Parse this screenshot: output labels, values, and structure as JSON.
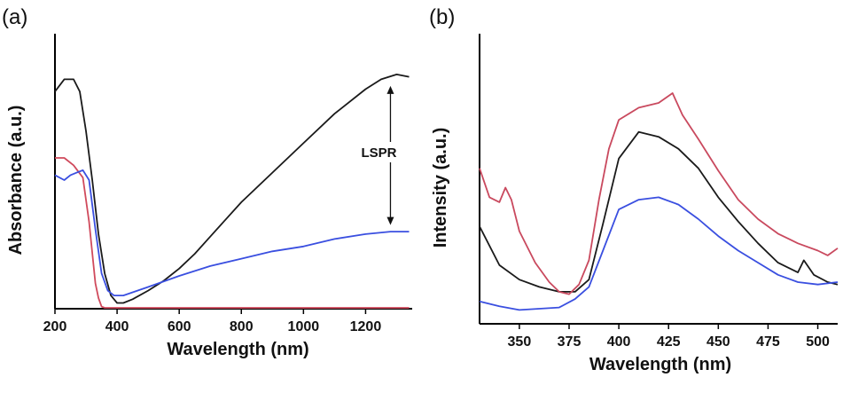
{
  "chart_data": [
    {
      "type": "line",
      "panel_label": "(a)",
      "xlabel": "Wavelength (nm)",
      "ylabel": "Absorbance (a.u.)",
      "xlim": [
        200,
        1350
      ],
      "ylim": [
        0,
        1.0
      ],
      "xticks": [
        200,
        400,
        600,
        800,
        1000,
        1200
      ],
      "y_tick_labels": false,
      "annotation": "LSPR",
      "series": [
        {
          "color": "#1a1a1a",
          "x": [
            200,
            230,
            260,
            280,
            300,
            320,
            340,
            360,
            380,
            400,
            420,
            450,
            500,
            550,
            600,
            650,
            700,
            750,
            800,
            900,
            1000,
            1100,
            1200,
            1250,
            1300,
            1340
          ],
          "y": [
            0.88,
            0.93,
            0.93,
            0.88,
            0.72,
            0.52,
            0.3,
            0.14,
            0.05,
            0.02,
            0.02,
            0.035,
            0.07,
            0.11,
            0.16,
            0.22,
            0.29,
            0.36,
            0.43,
            0.55,
            0.67,
            0.79,
            0.89,
            0.93,
            0.95,
            0.94
          ]
        },
        {
          "color": "#d04a5c",
          "x": [
            200,
            230,
            260,
            290,
            310,
            330,
            340,
            350,
            360,
            380,
            400,
            500,
            700,
            900,
            1100,
            1340
          ],
          "y": [
            0.61,
            0.61,
            0.58,
            0.53,
            0.35,
            0.1,
            0.04,
            0.005,
            0.0,
            0.0,
            0.0,
            0.0,
            0.0,
            0.0,
            0.0,
            0.0
          ]
        },
        {
          "color": "#3a4fe0",
          "x": [
            200,
            230,
            250,
            270,
            290,
            310,
            330,
            350,
            370,
            390,
            420,
            500,
            600,
            700,
            800,
            900,
            1000,
            1100,
            1200,
            1280,
            1340
          ],
          "y": [
            0.54,
            0.52,
            0.54,
            0.55,
            0.56,
            0.52,
            0.32,
            0.14,
            0.07,
            0.05,
            0.05,
            0.085,
            0.13,
            0.17,
            0.2,
            0.23,
            0.25,
            0.28,
            0.3,
            0.31,
            0.31
          ]
        }
      ]
    },
    {
      "type": "line",
      "panel_label": "(b)",
      "xlabel": "Wavelength (nm)",
      "ylabel": "Intensity (a.u.)",
      "xlim": [
        330,
        510
      ],
      "ylim": [
        0,
        1.0
      ],
      "xticks": [
        350,
        375,
        400,
        425,
        450,
        475,
        500
      ],
      "y_tick_labels": false,
      "series": [
        {
          "color": "#1a1a1a",
          "x": [
            330,
            340,
            350,
            360,
            370,
            378,
            385,
            392,
            400,
            410,
            420,
            430,
            440,
            450,
            460,
            470,
            480,
            490,
            493,
            498,
            505,
            510
          ],
          "y": [
            0.34,
            0.18,
            0.12,
            0.09,
            0.07,
            0.07,
            0.12,
            0.35,
            0.62,
            0.73,
            0.71,
            0.66,
            0.58,
            0.46,
            0.36,
            0.27,
            0.19,
            0.15,
            0.2,
            0.14,
            0.11,
            0.1
          ]
        },
        {
          "color": "#c9495e",
          "x": [
            330,
            335,
            340,
            343,
            346,
            350,
            358,
            365,
            370,
            375,
            380,
            385,
            390,
            395,
            400,
            410,
            420,
            427,
            432,
            440,
            450,
            460,
            470,
            480,
            490,
            500,
            505,
            510
          ],
          "y": [
            0.58,
            0.46,
            0.44,
            0.5,
            0.45,
            0.32,
            0.19,
            0.11,
            0.07,
            0.06,
            0.1,
            0.2,
            0.45,
            0.66,
            0.78,
            0.83,
            0.85,
            0.89,
            0.8,
            0.7,
            0.57,
            0.45,
            0.37,
            0.31,
            0.27,
            0.24,
            0.22,
            0.25
          ]
        },
        {
          "color": "#3a4fe0",
          "x": [
            330,
            340,
            350,
            360,
            370,
            378,
            385,
            392,
            400,
            410,
            420,
            430,
            440,
            450,
            460,
            470,
            480,
            490,
            500,
            510
          ],
          "y": [
            0.03,
            0.01,
            -0.005,
            0.0,
            0.005,
            0.04,
            0.09,
            0.24,
            0.41,
            0.45,
            0.46,
            0.43,
            0.37,
            0.3,
            0.24,
            0.19,
            0.14,
            0.11,
            0.1,
            0.11
          ]
        }
      ]
    }
  ]
}
